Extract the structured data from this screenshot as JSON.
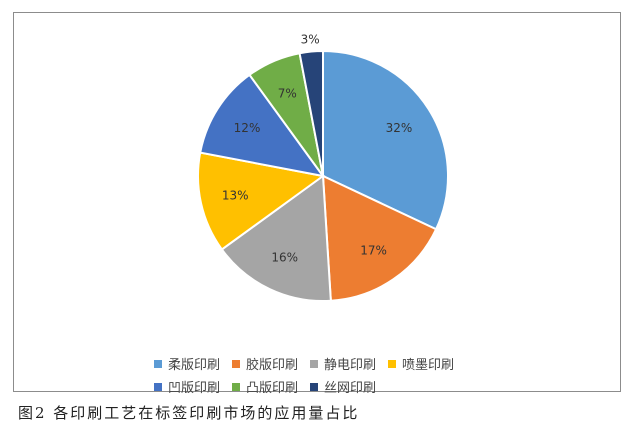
{
  "chart_data": {
    "type": "pie",
    "title": "",
    "categories": [
      "柔版印刷",
      "胶版印刷",
      "静电印刷",
      "喷墨印刷",
      "凹版印刷",
      "凸版印刷",
      "丝网印刷"
    ],
    "values": [
      32,
      17,
      16,
      13,
      12,
      7,
      3
    ],
    "labels": [
      "32%",
      "17%",
      "16%",
      "13%",
      "12%",
      "7%",
      "3%"
    ],
    "colors": [
      "#5b9bd5",
      "#ed7d31",
      "#a5a5a5",
      "#ffc000",
      "#4472c4",
      "#70ad47",
      "#264478"
    ],
    "legend_position": "bottom"
  },
  "caption": "图2  各印刷工艺在标签印刷市场的应用量占比"
}
